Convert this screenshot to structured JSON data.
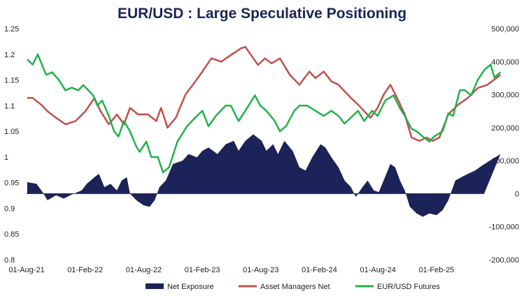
{
  "chart_data": {
    "type": "line",
    "title": "EUR/USD : Large Speculative Positioning",
    "x_ticks": [
      "01-Aug-21",
      "01-Feb-22",
      "01-Aug-22",
      "01-Feb-23",
      "01-Aug-23",
      "01-Feb-24",
      "01-Aug-24",
      "01-Feb-25"
    ],
    "left_axis": {
      "min": 0.8,
      "max": 1.25,
      "ticks": [
        "0.8",
        "0.85",
        "0.9",
        "0.95",
        "1",
        "1.05",
        "1.1",
        "1.15",
        "1.2",
        "1.25"
      ]
    },
    "right_axis": {
      "min": -200000,
      "max": 500000,
      "ticks": [
        "-200,000",
        "-100,000",
        "0",
        "100,000",
        "200,000",
        "300,000",
        "400,000",
        "500,000"
      ]
    },
    "x_range": [
      "2021-08-01",
      "2025-08-20"
    ],
    "grid": false,
    "legend_position": "bottom",
    "series": [
      {
        "name": "Net Exposure",
        "kind": "area",
        "axis": "right",
        "color": "#1b2358",
        "points": [
          [
            "2021-08-03",
            35000
          ],
          [
            "2021-09-01",
            30000
          ],
          [
            "2021-09-20",
            5000
          ],
          [
            "2021-10-05",
            -20000
          ],
          [
            "2021-11-01",
            -5000
          ],
          [
            "2021-11-25",
            -15000
          ],
          [
            "2021-12-15",
            -5000
          ],
          [
            "2022-01-20",
            10000
          ],
          [
            "2022-02-05",
            30000
          ],
          [
            "2022-03-01",
            50000
          ],
          [
            "2022-03-15",
            60000
          ],
          [
            "2022-04-01",
            20000
          ],
          [
            "2022-04-20",
            30000
          ],
          [
            "2022-05-10",
            10000
          ],
          [
            "2022-05-25",
            40000
          ],
          [
            "2022-06-10",
            50000
          ],
          [
            "2022-06-20",
            0
          ],
          [
            "2022-07-10",
            -20000
          ],
          [
            "2022-08-01",
            -35000
          ],
          [
            "2022-08-20",
            -40000
          ],
          [
            "2022-09-05",
            -20000
          ],
          [
            "2022-09-20",
            20000
          ],
          [
            "2022-10-10",
            40000
          ],
          [
            "2022-11-01",
            90000
          ],
          [
            "2022-12-01",
            100000
          ],
          [
            "2022-12-20",
            120000
          ],
          [
            "2023-01-15",
            110000
          ],
          [
            "2023-02-01",
            130000
          ],
          [
            "2023-02-20",
            140000
          ],
          [
            "2023-03-20",
            120000
          ],
          [
            "2023-04-15",
            150000
          ],
          [
            "2023-05-10",
            160000
          ],
          [
            "2023-05-25",
            130000
          ],
          [
            "2023-06-15",
            160000
          ],
          [
            "2023-07-10",
            180000
          ],
          [
            "2023-08-05",
            160000
          ],
          [
            "2023-08-20",
            130000
          ],
          [
            "2023-09-10",
            150000
          ],
          [
            "2023-09-25",
            120000
          ],
          [
            "2023-10-15",
            160000
          ],
          [
            "2023-11-10",
            130000
          ],
          [
            "2023-12-01",
            80000
          ],
          [
            "2023-12-20",
            70000
          ],
          [
            "2024-01-10",
            110000
          ],
          [
            "2024-02-05",
            150000
          ],
          [
            "2024-02-20",
            140000
          ],
          [
            "2024-03-10",
            110000
          ],
          [
            "2024-04-01",
            80000
          ],
          [
            "2024-04-20",
            40000
          ],
          [
            "2024-05-10",
            20000
          ],
          [
            "2024-05-25",
            -10000
          ],
          [
            "2024-06-15",
            20000
          ],
          [
            "2024-07-01",
            40000
          ],
          [
            "2024-07-20",
            10000
          ],
          [
            "2024-08-05",
            5000
          ],
          [
            "2024-08-20",
            40000
          ],
          [
            "2024-09-10",
            90000
          ],
          [
            "2024-09-25",
            80000
          ],
          [
            "2024-10-10",
            40000
          ],
          [
            "2024-10-25",
            10000
          ],
          [
            "2024-11-10",
            -40000
          ],
          [
            "2024-12-01",
            -60000
          ],
          [
            "2024-12-20",
            -70000
          ],
          [
            "2025-01-10",
            -60000
          ],
          [
            "2025-02-01",
            -65000
          ],
          [
            "2025-02-20",
            -50000
          ],
          [
            "2025-03-10",
            -20000
          ],
          [
            "2025-04-01",
            40000
          ],
          [
            "2025-04-20",
            50000
          ],
          [
            "2025-05-10",
            60000
          ],
          [
            "2025-06-01",
            70000
          ],
          [
            "2025-07-01",
            90000
          ],
          [
            "2025-08-20",
            120000
          ]
        ]
      },
      {
        "name": "Asset Managers Net",
        "kind": "line",
        "axis": "right",
        "color": "#c0504d",
        "points": [
          [
            "2021-08-03",
            290000
          ],
          [
            "2021-08-20",
            290000
          ],
          [
            "2021-09-15",
            270000
          ],
          [
            "2021-10-05",
            250000
          ],
          [
            "2021-11-01",
            230000
          ],
          [
            "2021-12-01",
            210000
          ],
          [
            "2022-01-01",
            220000
          ],
          [
            "2022-02-01",
            250000
          ],
          [
            "2022-03-01",
            290000
          ],
          [
            "2022-03-20",
            250000
          ],
          [
            "2022-04-15",
            210000
          ],
          [
            "2022-05-10",
            240000
          ],
          [
            "2022-06-01",
            210000
          ],
          [
            "2022-06-20",
            260000
          ],
          [
            "2022-07-15",
            240000
          ],
          [
            "2022-08-15",
            240000
          ],
          [
            "2022-09-10",
            220000
          ],
          [
            "2022-09-25",
            260000
          ],
          [
            "2022-10-15",
            200000
          ],
          [
            "2022-11-10",
            230000
          ],
          [
            "2022-12-10",
            300000
          ],
          [
            "2023-01-10",
            340000
          ],
          [
            "2023-02-01",
            370000
          ],
          [
            "2023-03-01",
            410000
          ],
          [
            "2023-04-01",
            400000
          ],
          [
            "2023-05-01",
            420000
          ],
          [
            "2023-06-01",
            440000
          ],
          [
            "2023-06-15",
            445000
          ],
          [
            "2023-07-10",
            410000
          ],
          [
            "2023-07-25",
            390000
          ],
          [
            "2023-08-15",
            410000
          ],
          [
            "2023-09-05",
            395000
          ],
          [
            "2023-10-01",
            410000
          ],
          [
            "2023-11-01",
            360000
          ],
          [
            "2023-12-01",
            330000
          ],
          [
            "2024-01-01",
            370000
          ],
          [
            "2024-01-20",
            350000
          ],
          [
            "2024-02-15",
            370000
          ],
          [
            "2024-03-10",
            340000
          ],
          [
            "2024-04-01",
            330000
          ],
          [
            "2024-04-20",
            310000
          ],
          [
            "2024-05-10",
            290000
          ],
          [
            "2024-06-01",
            270000
          ],
          [
            "2024-06-20",
            250000
          ],
          [
            "2024-07-10",
            230000
          ],
          [
            "2024-08-01",
            260000
          ],
          [
            "2024-08-20",
            300000
          ],
          [
            "2024-09-10",
            330000
          ],
          [
            "2024-10-01",
            290000
          ],
          [
            "2024-10-25",
            240000
          ],
          [
            "2024-11-15",
            170000
          ],
          [
            "2024-12-10",
            160000
          ],
          [
            "2025-01-01",
            170000
          ],
          [
            "2025-01-20",
            160000
          ],
          [
            "2025-02-10",
            170000
          ],
          [
            "2025-03-10",
            240000
          ],
          [
            "2025-04-10",
            270000
          ],
          [
            "2025-05-10",
            290000
          ],
          [
            "2025-06-10",
            320000
          ],
          [
            "2025-07-10",
            330000
          ],
          [
            "2025-08-20",
            360000
          ]
        ]
      },
      {
        "name": "EUR/USD Futures",
        "kind": "line",
        "axis": "left",
        "color": "#22b14c",
        "points": [
          [
            "2021-08-03",
            1.19
          ],
          [
            "2021-08-20",
            1.18
          ],
          [
            "2021-09-05",
            1.2
          ],
          [
            "2021-10-01",
            1.16
          ],
          [
            "2021-10-20",
            1.165
          ],
          [
            "2021-11-10",
            1.15
          ],
          [
            "2021-11-30",
            1.13
          ],
          [
            "2021-12-20",
            1.135
          ],
          [
            "2022-01-10",
            1.13
          ],
          [
            "2022-01-25",
            1.14
          ],
          [
            "2022-02-10",
            1.13
          ],
          [
            "2022-02-25",
            1.12
          ],
          [
            "2022-03-10",
            1.1
          ],
          [
            "2022-03-25",
            1.11
          ],
          [
            "2022-04-15",
            1.08
          ],
          [
            "2022-05-01",
            1.05
          ],
          [
            "2022-05-15",
            1.04
          ],
          [
            "2022-06-01",
            1.07
          ],
          [
            "2022-06-20",
            1.05
          ],
          [
            "2022-07-10",
            1.02
          ],
          [
            "2022-07-20",
            1.01
          ],
          [
            "2022-08-10",
            1.03
          ],
          [
            "2022-08-25",
            1.0
          ],
          [
            "2022-09-15",
            1.0
          ],
          [
            "2022-10-01",
            0.97
          ],
          [
            "2022-10-20",
            0.98
          ],
          [
            "2022-11-15",
            1.03
          ],
          [
            "2022-12-15",
            1.06
          ],
          [
            "2023-01-15",
            1.08
          ],
          [
            "2023-02-01",
            1.09
          ],
          [
            "2023-02-20",
            1.06
          ],
          [
            "2023-03-15",
            1.08
          ],
          [
            "2023-04-15",
            1.1
          ],
          [
            "2023-05-01",
            1.1
          ],
          [
            "2023-05-25",
            1.07
          ],
          [
            "2023-06-15",
            1.09
          ],
          [
            "2023-07-15",
            1.12
          ],
          [
            "2023-08-01",
            1.1
          ],
          [
            "2023-08-20",
            1.09
          ],
          [
            "2023-09-15",
            1.07
          ],
          [
            "2023-10-01",
            1.05
          ],
          [
            "2023-10-20",
            1.06
          ],
          [
            "2023-11-15",
            1.09
          ],
          [
            "2023-12-01",
            1.1
          ],
          [
            "2023-12-25",
            1.1
          ],
          [
            "2024-01-20",
            1.09
          ],
          [
            "2024-02-15",
            1.08
          ],
          [
            "2024-03-10",
            1.09
          ],
          [
            "2024-04-01",
            1.08
          ],
          [
            "2024-04-20",
            1.065
          ],
          [
            "2024-05-15",
            1.08
          ],
          [
            "2024-06-01",
            1.09
          ],
          [
            "2024-06-20",
            1.07
          ],
          [
            "2024-07-15",
            1.09
          ],
          [
            "2024-08-01",
            1.08
          ],
          [
            "2024-08-25",
            1.11
          ],
          [
            "2024-09-20",
            1.12
          ],
          [
            "2024-10-10",
            1.095
          ],
          [
            "2024-10-25",
            1.08
          ],
          [
            "2024-11-15",
            1.055
          ],
          [
            "2024-12-01",
            1.05
          ],
          [
            "2024-12-20",
            1.04
          ],
          [
            "2025-01-10",
            1.03
          ],
          [
            "2025-01-25",
            1.04
          ],
          [
            "2025-02-20",
            1.05
          ],
          [
            "2025-03-10",
            1.085
          ],
          [
            "2025-03-25",
            1.08
          ],
          [
            "2025-04-15",
            1.13
          ],
          [
            "2025-05-01",
            1.13
          ],
          [
            "2025-05-20",
            1.12
          ],
          [
            "2025-06-10",
            1.15
          ],
          [
            "2025-07-01",
            1.17
          ],
          [
            "2025-07-20",
            1.18
          ],
          [
            "2025-08-01",
            1.155
          ],
          [
            "2025-08-20",
            1.165
          ]
        ]
      }
    ]
  }
}
